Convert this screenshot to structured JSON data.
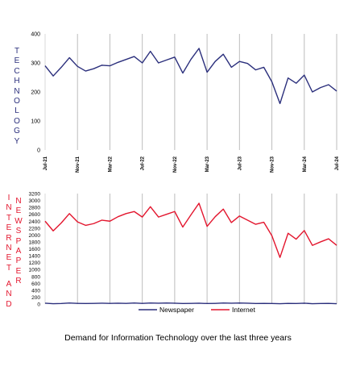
{
  "caption": "Demand for Information Technology over the last three years",
  "side_labels": {
    "technology": "TECHNOLOGY",
    "internet": "INTERNET",
    "newspaper": "NEWSPAPER",
    "and": "AND"
  },
  "colors": {
    "technology": "#2b2f7c",
    "newspaper": "#2b2f7c",
    "internet": "#e3162e",
    "grid": "#bdbdbd"
  },
  "chart_data": [
    {
      "type": "line",
      "title": "",
      "xlabel": "",
      "ylabel": "TECHNOLOGY",
      "ylim": [
        0,
        400
      ],
      "yticks": [
        0,
        100,
        200,
        300,
        400
      ],
      "x": [
        "Jul-21",
        "Aug-21",
        "Sep-21",
        "Oct-21",
        "Nov-21",
        "Dec-21",
        "Jan-22",
        "Feb-22",
        "Mar-22",
        "Apr-22",
        "May-22",
        "Jun-22",
        "Jul-22",
        "Aug-22",
        "Sep-22",
        "Oct-22",
        "Nov-22",
        "Dec-22",
        "Jan-23",
        "Feb-23",
        "Mar-23",
        "Apr-23",
        "May-23",
        "Jun-23",
        "Jul-23",
        "Aug-23",
        "Sep-23",
        "Oct-23",
        "Nov-23",
        "Dec-23",
        "Jan-24",
        "Feb-24",
        "Mar-24",
        "Apr-24",
        "May-24",
        "Jun-24",
        "Jul-24"
      ],
      "xtick_labels": [
        "Jul-21",
        "Nov-21",
        "Mar-22",
        "Jul-22",
        "Nov-22",
        "Mar-23",
        "Jul-23",
        "Nov-23",
        "Mar-24",
        "Jul-24"
      ],
      "grid": "vertical",
      "series": [
        {
          "values": [
            290,
            255,
            285,
            318,
            288,
            272,
            280,
            292,
            290,
            302,
            312,
            322,
            300,
            340,
            300,
            310,
            320,
            265,
            312,
            350,
            268,
            305,
            330,
            285,
            305,
            298,
            276,
            285,
            235,
            160,
            248,
            230,
            258,
            200,
            215,
            225,
            203
          ]
        }
      ]
    },
    {
      "type": "line",
      "title": "",
      "xlabel": "",
      "ylabel": "INTERNET AND NEWSPAPER",
      "ylim": [
        0,
        3200
      ],
      "yticks": [
        0,
        200,
        400,
        600,
        800,
        1000,
        1200,
        1400,
        1600,
        1800,
        2000,
        2200,
        2400,
        2600,
        2800,
        3000,
        3200
      ],
      "x": [
        "Jul-21",
        "Aug-21",
        "Sep-21",
        "Oct-21",
        "Nov-21",
        "Dec-21",
        "Jan-22",
        "Feb-22",
        "Mar-22",
        "Apr-22",
        "May-22",
        "Jun-22",
        "Jul-22",
        "Aug-22",
        "Sep-22",
        "Oct-22",
        "Nov-22",
        "Dec-22",
        "Jan-23",
        "Feb-23",
        "Mar-23",
        "Apr-23",
        "May-23",
        "Jun-23",
        "Jul-23",
        "Aug-23",
        "Sep-23",
        "Oct-23",
        "Nov-23",
        "Dec-23",
        "Jan-24",
        "Feb-24",
        "Mar-24",
        "Apr-24",
        "May-24",
        "Jun-24",
        "Jul-24"
      ],
      "grid": "vertical",
      "legend": "bottom",
      "series": [
        {
          "name": "Newspaper",
          "values": [
            25,
            10,
            15,
            30,
            20,
            15,
            20,
            25,
            20,
            25,
            20,
            30,
            20,
            30,
            25,
            30,
            25,
            15,
            20,
            25,
            15,
            20,
            30,
            25,
            30,
            25,
            15,
            20,
            15,
            10,
            20,
            15,
            25,
            10,
            15,
            20,
            10
          ]
        },
        {
          "name": "Internet",
          "values": [
            2400,
            2120,
            2350,
            2620,
            2380,
            2280,
            2330,
            2430,
            2400,
            2530,
            2620,
            2680,
            2520,
            2820,
            2520,
            2600,
            2680,
            2230,
            2580,
            2920,
            2250,
            2530,
            2750,
            2360,
            2550,
            2430,
            2310,
            2370,
            1980,
            1350,
            2050,
            1880,
            2130,
            1700,
            1800,
            1890,
            1700
          ]
        }
      ]
    }
  ]
}
